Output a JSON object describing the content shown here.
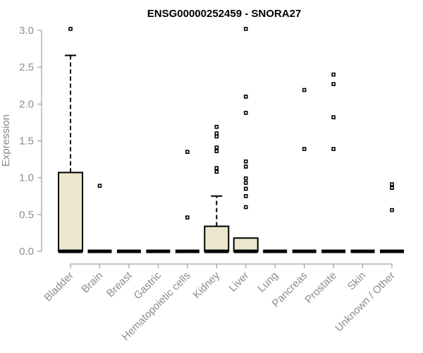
{
  "chart_data": {
    "type": "box",
    "title": "ENSG00000252459 - SNORA27",
    "xlabel": "",
    "ylabel": "Expression",
    "ylim": [
      0,
      3.0
    ],
    "yticks": [
      "0.0",
      "0.5",
      "1.0",
      "1.5",
      "2.0",
      "2.5",
      "3.0"
    ],
    "categories": [
      "Bladder",
      "Brain",
      "Breast",
      "Gastric",
      "Hematopoietic cells",
      "Kidney",
      "Liver",
      "Lung",
      "Pancreas",
      "Prostate",
      "Skin",
      "Unknown / Other"
    ],
    "boxes": [
      {
        "category": "Bladder",
        "q1": 0,
        "median": 0,
        "q3": 1.07,
        "whisker_low": 0,
        "whisker_high": 2.66,
        "outliers": [
          3.02
        ]
      },
      {
        "category": "Brain",
        "q1": 0,
        "median": 0,
        "q3": 0,
        "whisker_low": 0,
        "whisker_high": 0,
        "outliers": [
          0.89
        ]
      },
      {
        "category": "Breast",
        "q1": 0,
        "median": 0,
        "q3": 0,
        "whisker_low": 0,
        "whisker_high": 0,
        "outliers": []
      },
      {
        "category": "Gastric",
        "q1": 0,
        "median": 0,
        "q3": 0,
        "whisker_low": 0,
        "whisker_high": 0,
        "outliers": []
      },
      {
        "category": "Hematopoietic cells",
        "q1": 0,
        "median": 0,
        "q3": 0,
        "whisker_low": 0,
        "whisker_high": 0,
        "outliers": [
          0.46,
          1.35
        ]
      },
      {
        "category": "Kidney",
        "q1": 0,
        "median": 0,
        "q3": 0.34,
        "whisker_low": 0,
        "whisker_high": 0.75,
        "outliers": [
          1.08,
          1.13,
          1.36,
          1.41,
          1.56,
          1.6,
          1.69
        ]
      },
      {
        "category": "Liver",
        "q1": 0,
        "median": 0,
        "q3": 0.18,
        "whisker_low": 0,
        "whisker_high": 0.18,
        "outliers": [
          0.6,
          0.75,
          0.85,
          0.93,
          0.99,
          1.15,
          1.22,
          1.88,
          2.1,
          3.02
        ]
      },
      {
        "category": "Lung",
        "q1": 0,
        "median": 0,
        "q3": 0,
        "whisker_low": 0,
        "whisker_high": 0,
        "outliers": []
      },
      {
        "category": "Pancreas",
        "q1": 0,
        "median": 0,
        "q3": 0,
        "whisker_low": 0,
        "whisker_high": 0,
        "outliers": [
          1.39,
          2.19
        ]
      },
      {
        "category": "Prostate",
        "q1": 0,
        "median": 0,
        "q3": 0,
        "whisker_low": 0,
        "whisker_high": 0,
        "outliers": [
          1.39,
          1.82,
          2.27,
          2.4
        ]
      },
      {
        "category": "Skin",
        "q1": 0,
        "median": 0,
        "q3": 0,
        "whisker_low": 0,
        "whisker_high": 0,
        "outliers": []
      },
      {
        "category": "Unknown / Other",
        "q1": 0,
        "median": 0,
        "q3": 0,
        "whisker_low": 0,
        "whisker_high": 0,
        "outliers": [
          0.56,
          0.86,
          0.91
        ]
      }
    ],
    "grid": false,
    "legend": "none",
    "colors": {
      "box_fill": "#ece6cc",
      "box_stroke": "#000000",
      "axis": "#8c8c8c",
      "title": "#000000"
    }
  }
}
